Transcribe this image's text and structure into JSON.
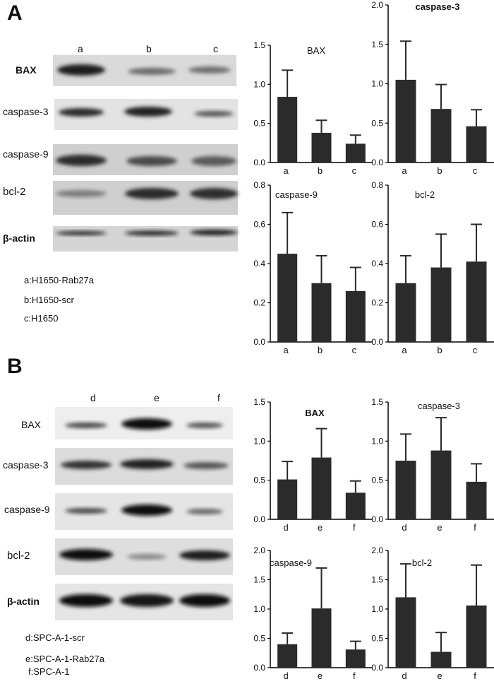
{
  "panels": [
    {
      "label": "A",
      "lanes": [
        "a",
        "b",
        "c"
      ],
      "blots": [
        "BAX",
        "caspase-3",
        "caspase-9",
        "bcl-2",
        "β-actin"
      ],
      "legend": [
        "a:H1650-Rab27a",
        "b:H1650-scr",
        "c:H1650"
      ]
    },
    {
      "label": "B",
      "lanes": [
        "d",
        "e",
        "f"
      ],
      "blots": [
        "BAX",
        "caspase-3",
        "caspase-9",
        "bcl-2",
        "β-actin"
      ],
      "legend": [
        "d:SPC-A-1-scr",
        "e:SPC-A-1-Rab27a",
        "f:SPC-A-1"
      ]
    }
  ],
  "chart_data": [
    {
      "type": "bar",
      "title": "BAX",
      "categories": [
        "a",
        "b",
        "c"
      ],
      "values": [
        0.84,
        0.38,
        0.24
      ],
      "errors": [
        0.34,
        0.16,
        0.11
      ],
      "ylim": [
        0,
        1.5
      ],
      "yticks": [
        "0.0",
        "0.5",
        "1.0",
        "1.5"
      ]
    },
    {
      "type": "bar",
      "title": "caspase-3",
      "categories": [
        "a",
        "b",
        "c"
      ],
      "values": [
        1.05,
        0.68,
        0.46
      ],
      "errors": [
        0.49,
        0.31,
        0.21
      ],
      "ylim": [
        0,
        2.0
      ],
      "yticks": [
        "0.0",
        "0.5",
        "1.0",
        "1.5",
        "2.0"
      ]
    },
    {
      "type": "bar",
      "title": "caspase-9",
      "categories": [
        "a",
        "b",
        "c"
      ],
      "values": [
        0.45,
        0.3,
        0.26
      ],
      "errors": [
        0.21,
        0.14,
        0.12
      ],
      "ylim": [
        0,
        0.8
      ],
      "yticks": [
        "0.0",
        "0.2",
        "0.4",
        "0.6",
        "0.8"
      ]
    },
    {
      "type": "bar",
      "title": "bcl-2",
      "categories": [
        "a",
        "b",
        "c"
      ],
      "values": [
        0.3,
        0.38,
        0.41
      ],
      "errors": [
        0.14,
        0.17,
        0.19
      ],
      "ylim": [
        0,
        0.8
      ],
      "yticks": [
        "0.0",
        "0.2",
        "0.4",
        "0.6",
        "0.8"
      ]
    },
    {
      "type": "bar",
      "title": "BAX",
      "categories": [
        "d",
        "e",
        "f"
      ],
      "values": [
        0.51,
        0.79,
        0.34
      ],
      "errors": [
        0.23,
        0.37,
        0.15
      ],
      "ylim": [
        0,
        1.5
      ],
      "yticks": [
        "0.0",
        "0.5",
        "1.0",
        "1.5"
      ]
    },
    {
      "type": "bar",
      "title": "caspase-3",
      "categories": [
        "d",
        "e",
        "f"
      ],
      "values": [
        0.75,
        0.88,
        0.48
      ],
      "errors": [
        0.34,
        0.42,
        0.23
      ],
      "ylim": [
        0,
        1.5
      ],
      "yticks": [
        "0.0",
        "0.5",
        "1.0",
        "1.5"
      ]
    },
    {
      "type": "bar",
      "title": "caspase-9",
      "categories": [
        "d",
        "e",
        "f"
      ],
      "values": [
        0.4,
        1.01,
        0.31
      ],
      "errors": [
        0.19,
        0.69,
        0.14
      ],
      "ylim": [
        0,
        2.0
      ],
      "yticks": [
        "0.0",
        "0.5",
        "1.0",
        "1.5",
        "2.0"
      ]
    },
    {
      "type": "bar",
      "title": "bcl-2",
      "categories": [
        "d",
        "e",
        "f"
      ],
      "values": [
        1.2,
        0.27,
        1.06
      ],
      "errors": [
        0.57,
        0.33,
        0.69
      ],
      "ylim": [
        0,
        2.0
      ],
      "yticks": [
        "0.0",
        "0.5",
        "1.0",
        "1.5",
        "2.0"
      ]
    }
  ]
}
